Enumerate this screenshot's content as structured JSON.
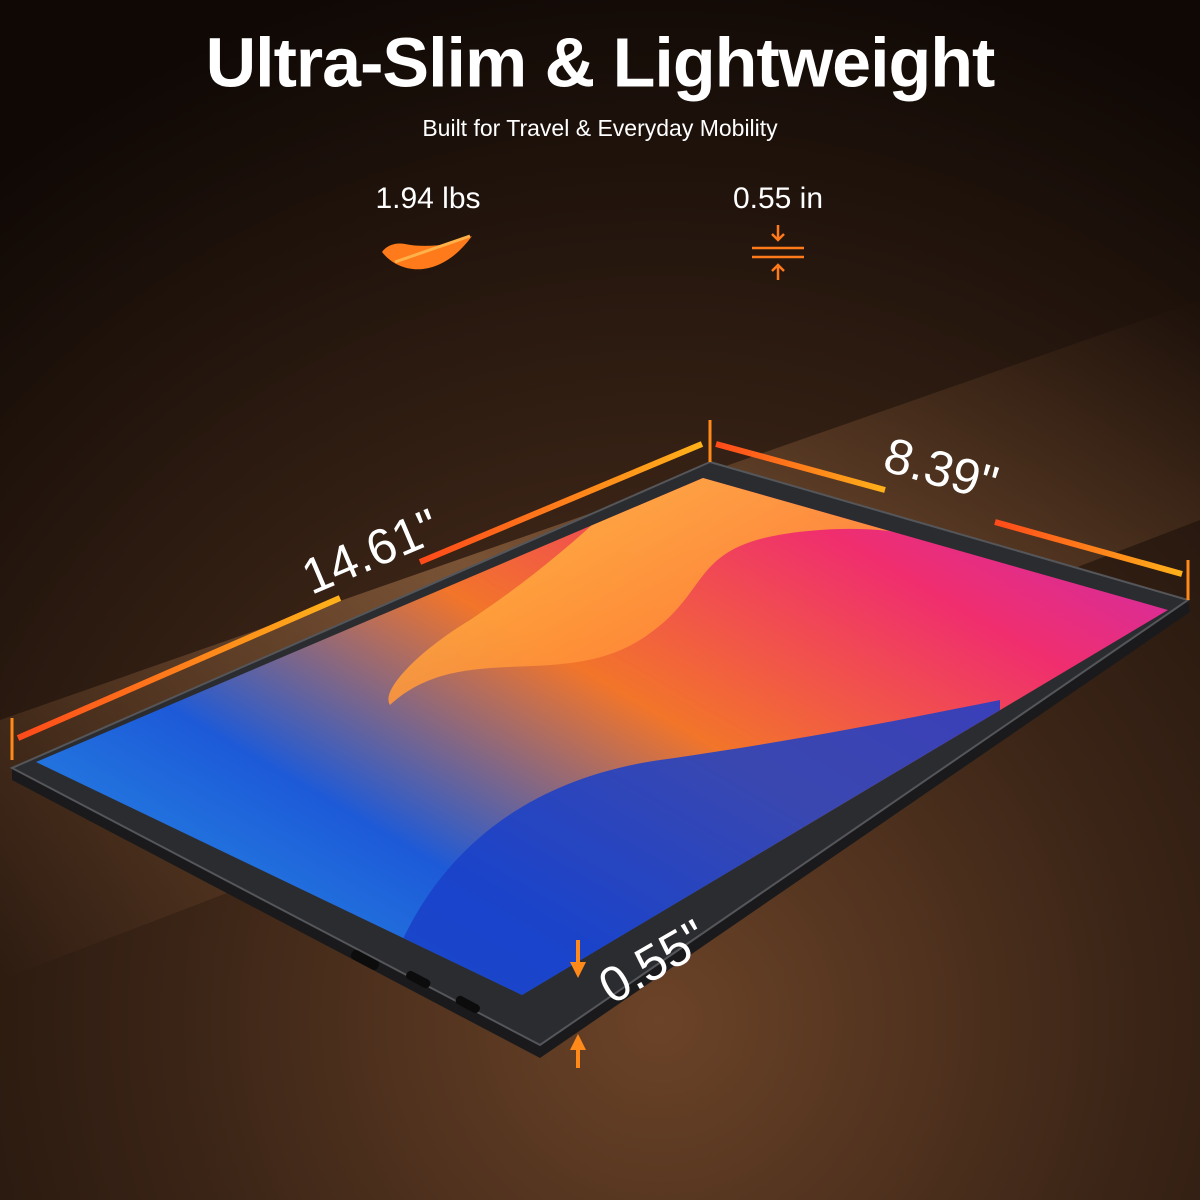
{
  "header": {
    "title": "Ultra-Slim & Lightweight",
    "subtitle": "Built for Travel & Everyday Mobility"
  },
  "specs": [
    {
      "label": "1.94 lbs"
    },
    {
      "label": "0.55 in"
    }
  ],
  "dimensions": {
    "length": "14.61\"",
    "width": "8.39\"",
    "thickness": "0.55\""
  }
}
